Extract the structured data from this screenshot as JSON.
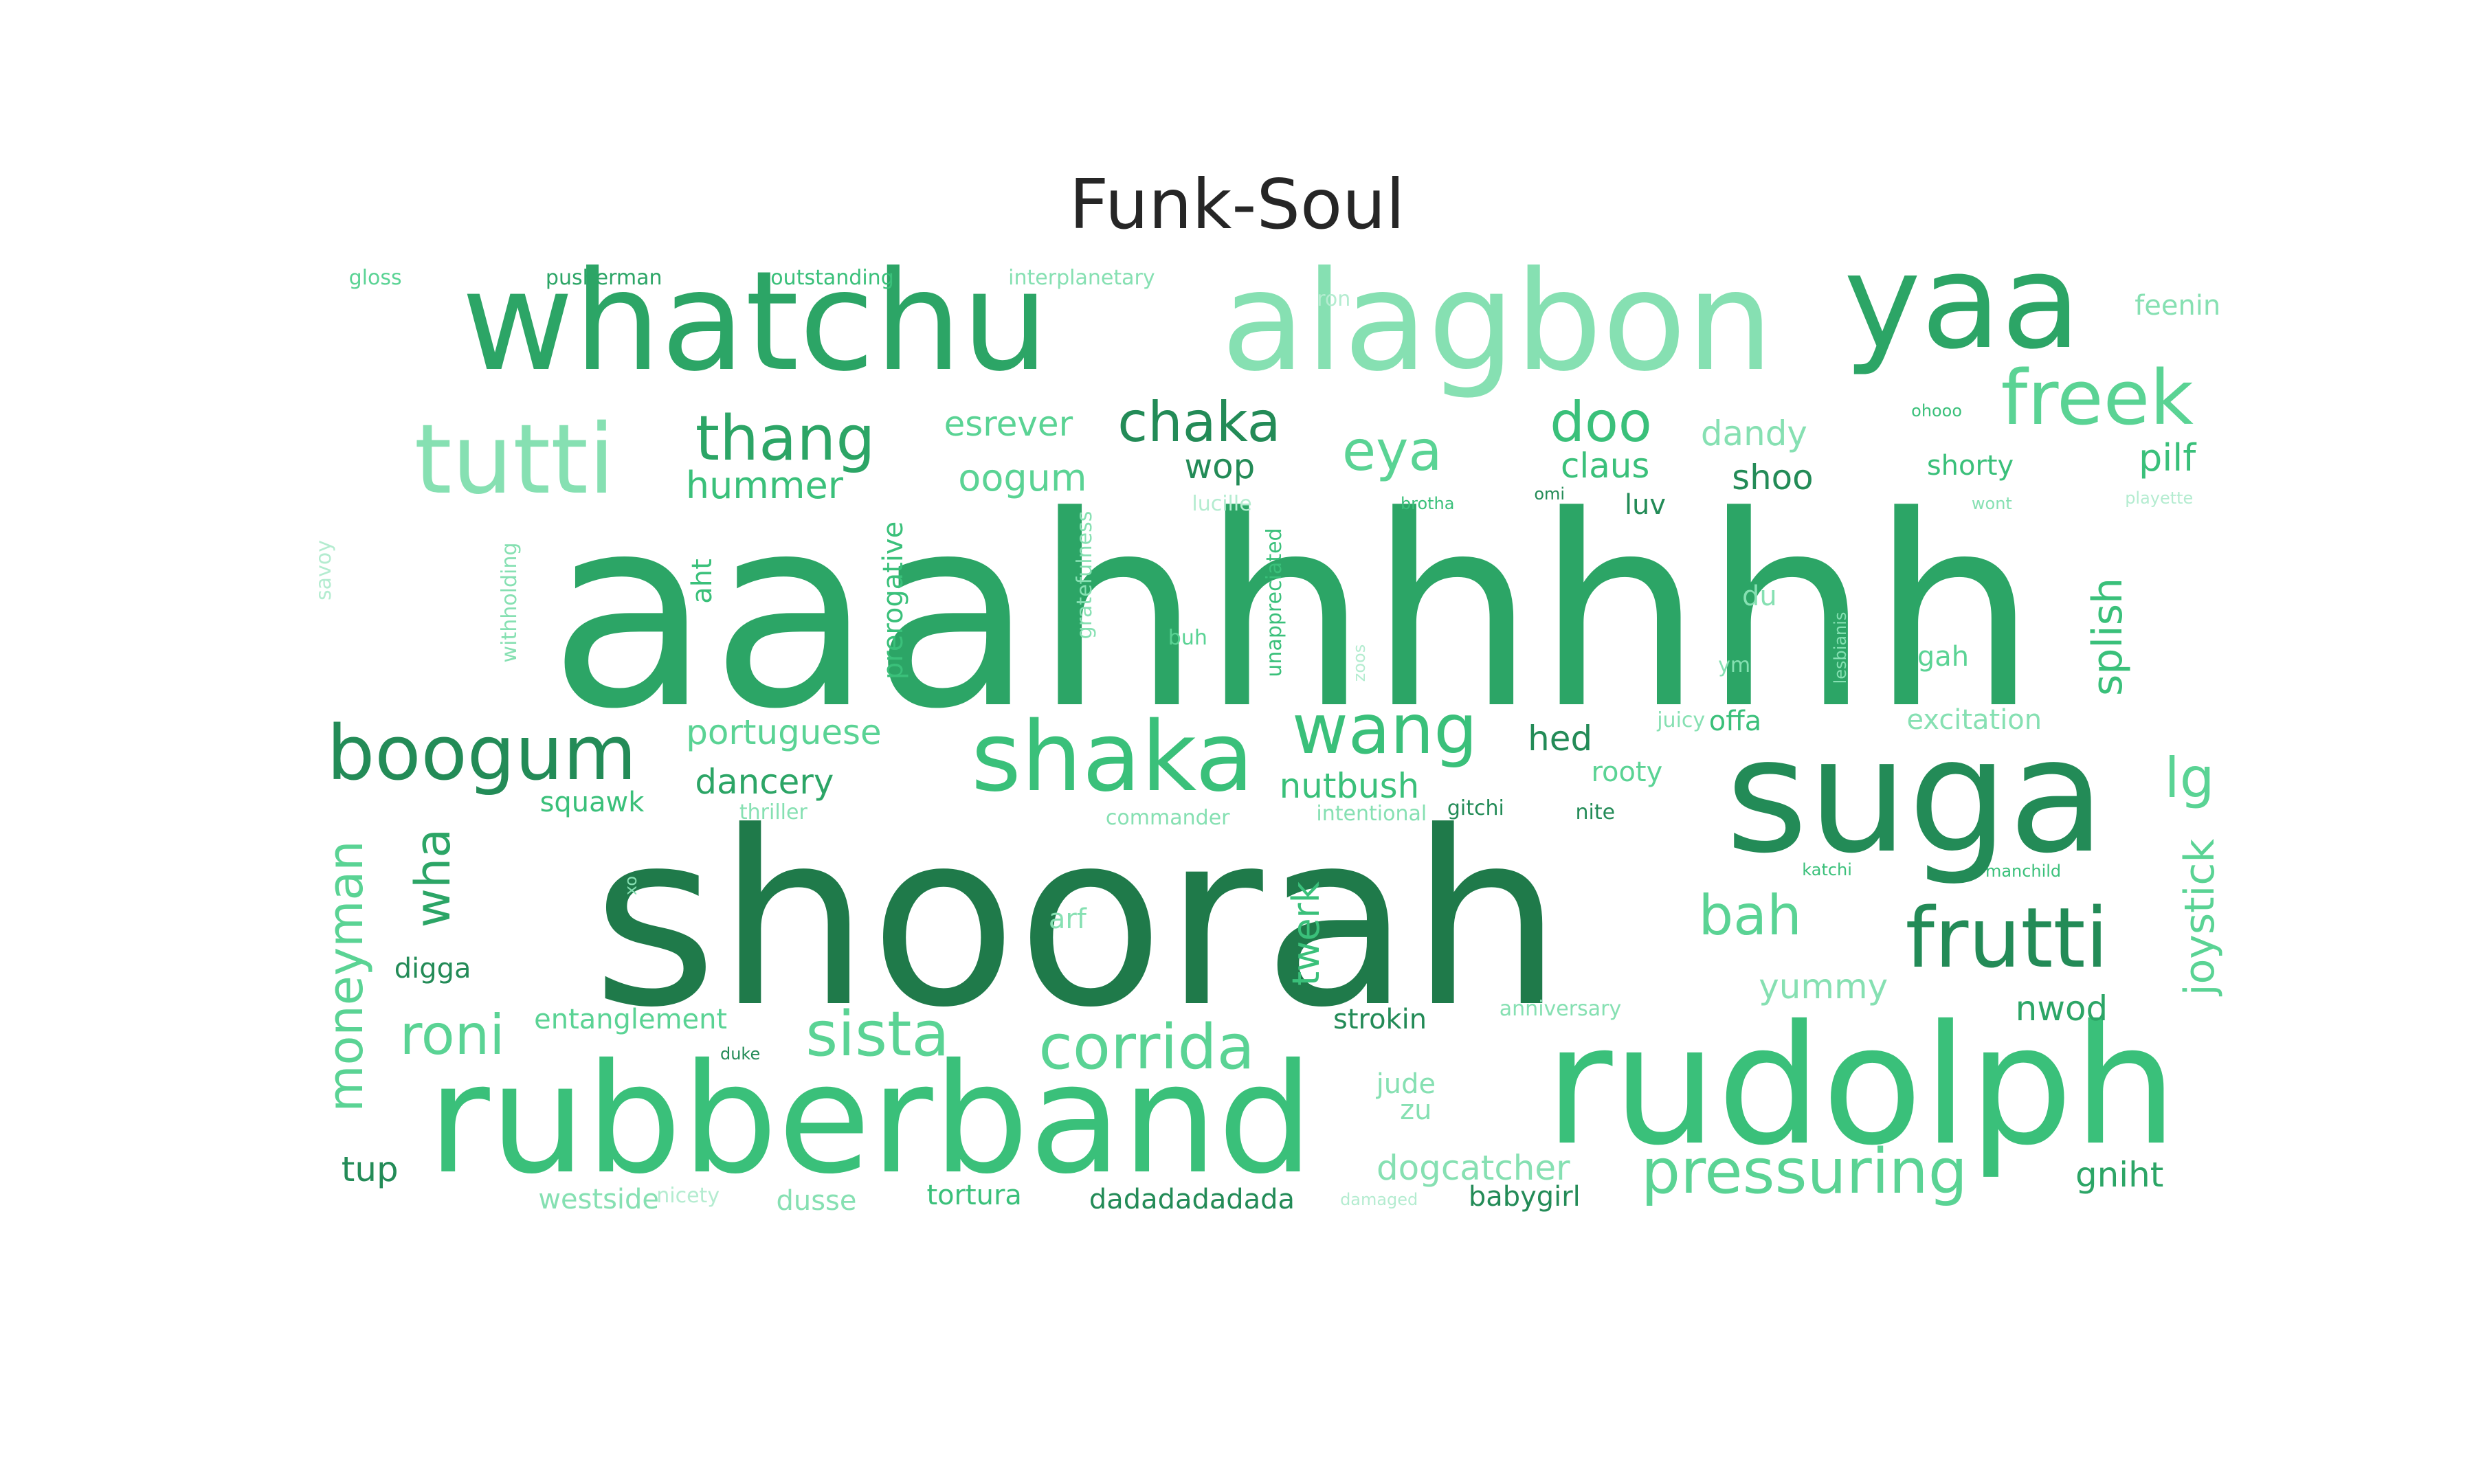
{
  "figure": {
    "title": "Funk-Soul"
  },
  "chart_data": {
    "type": "wordcloud",
    "title": "Funk-Soul",
    "palette": [
      "#1f7a4a",
      "#238b57",
      "#2ca566",
      "#3ac07a",
      "#5ad394",
      "#86e0b2",
      "#b4ecd0"
    ],
    "words": [
      {
        "text": "aaahhhhhh",
        "x": 0.5227,
        "y": 0.4134,
        "size": 0.1778,
        "color": "#2ca566"
      },
      {
        "text": "shoorah",
        "x": 0.4355,
        "y": 0.6204,
        "size": 0.162,
        "color": "#1f7a4a"
      },
      {
        "text": "rubberband",
        "x": 0.3519,
        "y": 0.7542,
        "size": 0.1019,
        "color": "#3ac07a"
      },
      {
        "text": "rudolph",
        "x": 0.7523,
        "y": 0.7319,
        "size": 0.1111,
        "color": "#3ac07a"
      },
      {
        "text": "suga",
        "x": 0.7742,
        "y": 0.5366,
        "size": 0.1065,
        "color": "#238b57"
      },
      {
        "text": "whatchu",
        "x": 0.3052,
        "y": 0.2171,
        "size": 0.0926,
        "color": "#2ca566"
      },
      {
        "text": "alagbon",
        "x": 0.6052,
        "y": 0.2171,
        "size": 0.0926,
        "color": "#86e0b2"
      },
      {
        "text": "yaa",
        "x": 0.7932,
        "y": 0.2037,
        "size": 0.088,
        "color": "#2ca566"
      },
      {
        "text": "shaka",
        "x": 0.4497,
        "y": 0.5107,
        "size": 0.0648,
        "color": "#3ac07a"
      },
      {
        "text": "tutti",
        "x": 0.208,
        "y": 0.3102,
        "size": 0.0648,
        "color": "#86e0b2"
      },
      {
        "text": "boogum",
        "x": 0.1947,
        "y": 0.5079,
        "size": 0.0509,
        "color": "#238b57"
      },
      {
        "text": "freek",
        "x": 0.8477,
        "y": 0.2685,
        "size": 0.0509,
        "color": "#5ad394"
      },
      {
        "text": "frutti",
        "x": 0.8112,
        "y": 0.6329,
        "size": 0.0556,
        "color": "#238b57"
      },
      {
        "text": "wang",
        "x": 0.5597,
        "y": 0.4917,
        "size": 0.0463,
        "color": "#3ac07a"
      },
      {
        "text": "corrida",
        "x": 0.4635,
        "y": 0.7059,
        "size": 0.0417,
        "color": "#5ad394"
      },
      {
        "text": "sista",
        "x": 0.3547,
        "y": 0.6972,
        "size": 0.0417,
        "color": "#5ad394"
      },
      {
        "text": "pressuring",
        "x": 0.7293,
        "y": 0.7898,
        "size": 0.0417,
        "color": "#5ad394"
      },
      {
        "text": "thang",
        "x": 0.3174,
        "y": 0.2958,
        "size": 0.0417,
        "color": "#2ca566"
      },
      {
        "text": "chaka",
        "x": 0.4847,
        "y": 0.2847,
        "size": 0.037,
        "color": "#238b57"
      },
      {
        "text": "doo",
        "x": 0.6471,
        "y": 0.2847,
        "size": 0.037,
        "color": "#3ac07a"
      },
      {
        "text": "eya",
        "x": 0.5627,
        "y": 0.3042,
        "size": 0.037,
        "color": "#5ad394"
      },
      {
        "text": "roni",
        "x": 0.1828,
        "y": 0.6977,
        "size": 0.037,
        "color": "#5ad394"
      },
      {
        "text": "bah",
        "x": 0.7074,
        "y": 0.6171,
        "size": 0.037,
        "color": "#5ad394"
      },
      {
        "text": "lg",
        "x": 0.885,
        "y": 0.5245,
        "size": 0.037,
        "color": "#5ad394"
      },
      {
        "text": "moneyman",
        "x": 0.1398,
        "y": 0.6579,
        "size": 0.0324,
        "color": "#5ad394",
        "rotate": -90
      },
      {
        "text": "wha",
        "x": 0.1749,
        "y": 0.5917,
        "size": 0.0324,
        "color": "#2ca566",
        "rotate": -90
      },
      {
        "text": "splish",
        "x": 0.852,
        "y": 0.4292,
        "size": 0.0278,
        "color": "#3ac07a",
        "rotate": -90
      },
      {
        "text": "joystick",
        "x": 0.8893,
        "y": 0.6181,
        "size": 0.0278,
        "color": "#5ad394",
        "rotate": -90
      },
      {
        "text": "twerk",
        "x": 0.528,
        "y": 0.6292,
        "size": 0.025,
        "color": "#3ac07a",
        "rotate": -90
      },
      {
        "text": "prerogative",
        "x": 0.3614,
        "y": 0.4046,
        "size": 0.0185,
        "color": "#3ac07a",
        "rotate": -90
      },
      {
        "text": "aht",
        "x": 0.2843,
        "y": 0.3917,
        "size": 0.0185,
        "color": "#3ac07a",
        "rotate": -90
      },
      {
        "text": "withholding",
        "x": 0.2061,
        "y": 0.406,
        "size": 0.0139,
        "color": "#86e0b2",
        "rotate": -90
      },
      {
        "text": "gratefulness",
        "x": 0.4387,
        "y": 0.3875,
        "size": 0.0139,
        "color": "#86e0b2",
        "rotate": -90
      },
      {
        "text": "unappreciated",
        "x": 0.5152,
        "y": 0.406,
        "size": 0.0139,
        "color": "#3ac07a",
        "rotate": -90
      },
      {
        "text": "savoy",
        "x": 0.1311,
        "y": 0.3843,
        "size": 0.0139,
        "color": "#b4ecd0",
        "rotate": -90
      },
      {
        "text": "lesbianis",
        "x": 0.7442,
        "y": 0.4366,
        "size": 0.0111,
        "color": "#86e0b2",
        "rotate": -90
      },
      {
        "text": "zoos",
        "x": 0.5498,
        "y": 0.4468,
        "size": 0.0111,
        "color": "#b4ecd0",
        "rotate": -90
      },
      {
        "text": "xo",
        "x": 0.2552,
        "y": 0.5968,
        "size": 0.0111,
        "color": "#86e0b2",
        "rotate": -90
      },
      {
        "text": "hummer",
        "x": 0.309,
        "y": 0.3273,
        "size": 0.025,
        "color": "#3ac07a"
      },
      {
        "text": "esrever",
        "x": 0.4076,
        "y": 0.2861,
        "size": 0.0231,
        "color": "#5ad394"
      },
      {
        "text": "oogum",
        "x": 0.4133,
        "y": 0.3222,
        "size": 0.025,
        "color": "#5ad394"
      },
      {
        "text": "wop",
        "x": 0.493,
        "y": 0.3148,
        "size": 0.0231,
        "color": "#238b57"
      },
      {
        "text": "claus",
        "x": 0.6488,
        "y": 0.3144,
        "size": 0.0231,
        "color": "#3ac07a"
      },
      {
        "text": "shoo",
        "x": 0.7165,
        "y": 0.3222,
        "size": 0.0231,
        "color": "#238b57"
      },
      {
        "text": "dandy",
        "x": 0.709,
        "y": 0.2926,
        "size": 0.0231,
        "color": "#86e0b2"
      },
      {
        "text": "shorty",
        "x": 0.7964,
        "y": 0.3143,
        "size": 0.0185,
        "color": "#3ac07a"
      },
      {
        "text": "pilf",
        "x": 0.876,
        "y": 0.3088,
        "size": 0.025,
        "color": "#3ac07a"
      },
      {
        "text": "feenin",
        "x": 0.8802,
        "y": 0.2064,
        "size": 0.0185,
        "color": "#86e0b2"
      },
      {
        "text": "portuguese",
        "x": 0.3168,
        "y": 0.494,
        "size": 0.0231,
        "color": "#5ad394"
      },
      {
        "text": "dancery",
        "x": 0.309,
        "y": 0.5275,
        "size": 0.0231,
        "color": "#2ca566"
      },
      {
        "text": "nutbush",
        "x": 0.5454,
        "y": 0.5301,
        "size": 0.0231,
        "color": "#3ac07a"
      },
      {
        "text": "hed",
        "x": 0.6306,
        "y": 0.4982,
        "size": 0.0231,
        "color": "#238b57"
      },
      {
        "text": "offa",
        "x": 0.7014,
        "y": 0.4866,
        "size": 0.0185,
        "color": "#3ac07a"
      },
      {
        "text": "excitation",
        "x": 0.798,
        "y": 0.4857,
        "size": 0.0185,
        "color": "#86e0b2"
      },
      {
        "text": "rooty",
        "x": 0.6576,
        "y": 0.521,
        "size": 0.0185,
        "color": "#5ad394"
      },
      {
        "text": "juicy",
        "x": 0.6795,
        "y": 0.4857,
        "size": 0.0139,
        "color": "#86e0b2"
      },
      {
        "text": "gah",
        "x": 0.7854,
        "y": 0.4431,
        "size": 0.0185,
        "color": "#5ad394"
      },
      {
        "text": "du",
        "x": 0.7112,
        "y": 0.4023,
        "size": 0.0185,
        "color": "#86e0b2"
      },
      {
        "text": "luv",
        "x": 0.665,
        "y": 0.3407,
        "size": 0.0185,
        "color": "#238b57"
      },
      {
        "text": "omi",
        "x": 0.6263,
        "y": 0.3333,
        "size": 0.0111,
        "color": "#238b57"
      },
      {
        "text": "brotha",
        "x": 0.577,
        "y": 0.3398,
        "size": 0.0111,
        "color": "#3ac07a"
      },
      {
        "text": "lucille",
        "x": 0.4939,
        "y": 0.3398,
        "size": 0.0139,
        "color": "#b4ecd0"
      },
      {
        "text": "wont",
        "x": 0.8051,
        "y": 0.3398,
        "size": 0.0111,
        "color": "#86e0b2"
      },
      {
        "text": "playette",
        "x": 0.8727,
        "y": 0.3361,
        "size": 0.0111,
        "color": "#b4ecd0"
      },
      {
        "text": "ohooo",
        "x": 0.7828,
        "y": 0.2773,
        "size": 0.0111,
        "color": "#3ac07a"
      },
      {
        "text": "ron",
        "x": 0.5391,
        "y": 0.2018,
        "size": 0.0139,
        "color": "#b4ecd0"
      },
      {
        "text": "gloss",
        "x": 0.1517,
        "y": 0.1875,
        "size": 0.0139,
        "color": "#5ad394"
      },
      {
        "text": "pusherman",
        "x": 0.2441,
        "y": 0.1875,
        "size": 0.0139,
        "color": "#2ca566"
      },
      {
        "text": "outstanding",
        "x": 0.3364,
        "y": 0.1875,
        "size": 0.0139,
        "color": "#3ac07a"
      },
      {
        "text": "interplanetary",
        "x": 0.4372,
        "y": 0.1875,
        "size": 0.0139,
        "color": "#86e0b2"
      },
      {
        "text": "squawk",
        "x": 0.2393,
        "y": 0.5414,
        "size": 0.0185,
        "color": "#3ac07a"
      },
      {
        "text": "thriller",
        "x": 0.3126,
        "y": 0.5479,
        "size": 0.0139,
        "color": "#86e0b2"
      },
      {
        "text": "commander",
        "x": 0.472,
        "y": 0.5516,
        "size": 0.0139,
        "color": "#86e0b2"
      },
      {
        "text": "intentional",
        "x": 0.5544,
        "y": 0.5488,
        "size": 0.0139,
        "color": "#86e0b2"
      },
      {
        "text": "gitchi",
        "x": 0.5965,
        "y": 0.5451,
        "size": 0.0139,
        "color": "#238b57"
      },
      {
        "text": "nite",
        "x": 0.6448,
        "y": 0.5479,
        "size": 0.0139,
        "color": "#238b57"
      },
      {
        "text": "katchi",
        "x": 0.7385,
        "y": 0.5868,
        "size": 0.0111,
        "color": "#3ac07a"
      },
      {
        "text": "manchild",
        "x": 0.8178,
        "y": 0.5877,
        "size": 0.0111,
        "color": "#3ac07a"
      },
      {
        "text": "buh",
        "x": 0.4801,
        "y": 0.43,
        "size": 0.0139,
        "color": "#5ad394"
      },
      {
        "text": "ym",
        "x": 0.701,
        "y": 0.4485,
        "size": 0.0139,
        "color": "#86e0b2"
      },
      {
        "text": "arf",
        "x": 0.4315,
        "y": 0.6199,
        "size": 0.0185,
        "color": "#86e0b2"
      },
      {
        "text": "digga",
        "x": 0.1749,
        "y": 0.6533,
        "size": 0.0185,
        "color": "#238b57"
      },
      {
        "text": "entanglement",
        "x": 0.2549,
        "y": 0.6875,
        "size": 0.0185,
        "color": "#5ad394"
      },
      {
        "text": "duke",
        "x": 0.2992,
        "y": 0.7106,
        "size": 0.0111,
        "color": "#238b57"
      },
      {
        "text": "yummy",
        "x": 0.737,
        "y": 0.6653,
        "size": 0.0231,
        "color": "#86e0b2"
      },
      {
        "text": "nwod",
        "x": 0.8333,
        "y": 0.6801,
        "size": 0.0231,
        "color": "#2ca566"
      },
      {
        "text": "strokin",
        "x": 0.5578,
        "y": 0.6875,
        "size": 0.0185,
        "color": "#238b57"
      },
      {
        "text": "anniversary",
        "x": 0.6307,
        "y": 0.6801,
        "size": 0.0139,
        "color": "#86e0b2"
      },
      {
        "text": "jude",
        "x": 0.5683,
        "y": 0.731,
        "size": 0.0185,
        "color": "#86e0b2"
      },
      {
        "text": "zu",
        "x": 0.5723,
        "y": 0.7486,
        "size": 0.0185,
        "color": "#86e0b2"
      },
      {
        "text": "dogcatcher",
        "x": 0.5955,
        "y": 0.7875,
        "size": 0.0231,
        "color": "#86e0b2"
      },
      {
        "text": "tup",
        "x": 0.1495,
        "y": 0.7884,
        "size": 0.0231,
        "color": "#238b57"
      },
      {
        "text": "westside",
        "x": 0.242,
        "y": 0.8088,
        "size": 0.0185,
        "color": "#86e0b2"
      },
      {
        "text": "nicety",
        "x": 0.2781,
        "y": 0.806,
        "size": 0.0139,
        "color": "#b4ecd0"
      },
      {
        "text": "dusse",
        "x": 0.33,
        "y": 0.8097,
        "size": 0.0185,
        "color": "#86e0b2"
      },
      {
        "text": "tortura",
        "x": 0.3938,
        "y": 0.806,
        "size": 0.0185,
        "color": "#3ac07a"
      },
      {
        "text": "dadadadadada",
        "x": 0.4818,
        "y": 0.8088,
        "size": 0.0185,
        "color": "#238b57"
      },
      {
        "text": "damaged",
        "x": 0.5574,
        "y": 0.8088,
        "size": 0.0111,
        "color": "#b4ecd0"
      },
      {
        "text": "babygirl",
        "x": 0.6162,
        "y": 0.8069,
        "size": 0.0185,
        "color": "#238b57"
      },
      {
        "text": "gniht",
        "x": 0.8567,
        "y": 0.7921,
        "size": 0.0231,
        "color": "#2ca566"
      }
    ]
  }
}
